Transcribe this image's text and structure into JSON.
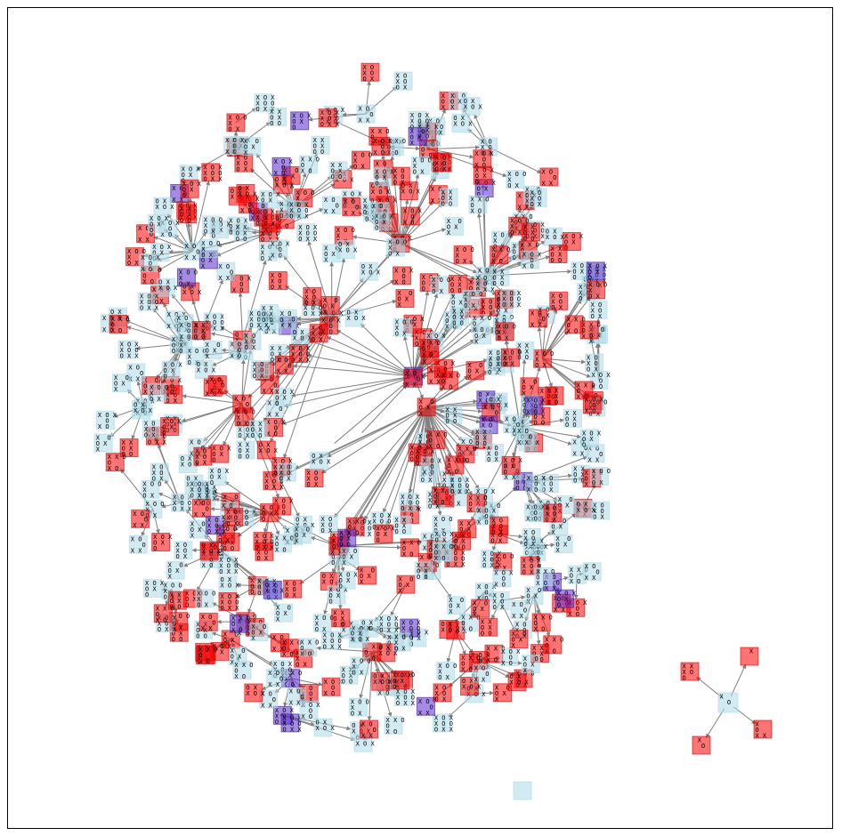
{
  "diagram": {
    "type": "network-graph",
    "description_colors": {
      "non_terminal": "#add8e6",
      "terminal": "#ff0000",
      "draw_state": "#5b2bd1",
      "edge": "#808080"
    },
    "nodes": [
      {
        "id": "n1",
        "board": [
          "X O ",
          "X  ",
          "O  "
        ],
        "kind": "non_terminal"
      },
      {
        "id": "n2",
        "board": [
          "X O X",
          "X  ",
          "O O"
        ],
        "kind": "non_terminal"
      },
      {
        "id": "n3",
        "board": [
          "X O X",
          "O X",
          "   "
        ],
        "kind": "non_terminal"
      },
      {
        "id": "n4",
        "board": [
          "X O O",
          "X  ",
          "   "
        ],
        "kind": "non_terminal"
      },
      {
        "id": "n5",
        "board": [
          "X O ",
          "O X",
          "O  "
        ],
        "kind": "non_terminal"
      },
      {
        "id": "n6",
        "board": [
          "X O X",
          "X O",
          "O X"
        ],
        "kind": "terminal"
      },
      {
        "id": "n7",
        "board": [
          "X X O",
          "O X",
          "O X"
        ],
        "kind": "terminal"
      },
      {
        "id": "n8",
        "board": [
          "X O X",
          "O O",
          "X X"
        ],
        "kind": "draw_state"
      },
      {
        "id": "n9",
        "board": [
          "X  ",
          "  O",
          "   "
        ],
        "kind": "non_terminal"
      },
      {
        "id": "n10",
        "board": [
          "X X",
          "X O",
          "O  "
        ],
        "kind": "terminal"
      },
      {
        "id": "n11",
        "board": [
          "  X",
          "  ",
          "   "
        ],
        "kind": "terminal"
      },
      {
        "id": "n12",
        "board": [
          "X  ",
          "X O",
          "O  "
        ],
        "kind": "terminal"
      },
      {
        "id": "n13",
        "board": [
          "X  ",
          "O  ",
          "X X"
        ],
        "kind": "terminal"
      },
      {
        "id": "n14",
        "board": [
          " X ",
          "  O",
          "   "
        ],
        "kind": "terminal"
      },
      {
        "id": "n15",
        "board": [
          "   ",
          "   ",
          "   "
        ],
        "kind": "non_terminal"
      }
    ]
  }
}
